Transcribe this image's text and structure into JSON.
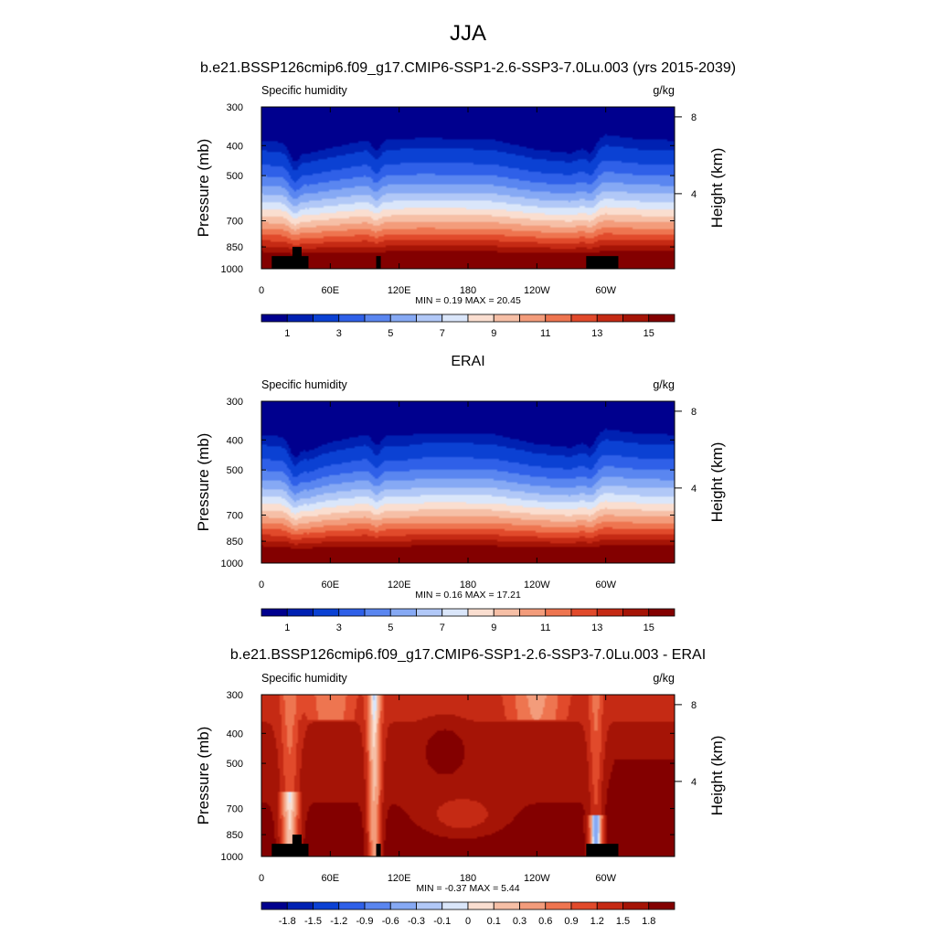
{
  "figure": {
    "season_title": "JJA",
    "case_title": "b.e21.BSSP126cmip6.f09_g17.CMIP6-SSP1-2.6-SSP3-7.0Lu.003 (yrs 2015-2039)"
  },
  "chart_data": [
    {
      "type": "heatmap",
      "title": "",
      "left_string": "Specific humidity",
      "right_string": "g/kg",
      "xlabel": "",
      "ylabel": "Pressure (mb)",
      "y2label": "Height (km)",
      "xticks": [
        "0",
        "60E",
        "120E",
        "180",
        "120W",
        "60W"
      ],
      "xtick_values": [
        0,
        60,
        120,
        180,
        240,
        300
      ],
      "xlim": [
        0,
        360
      ],
      "yticks": [
        "300",
        "400",
        "500",
        "700",
        "850",
        "1000"
      ],
      "ytick_values": [
        300,
        400,
        500,
        700,
        850,
        1000
      ],
      "ylim": [
        1000,
        300
      ],
      "y2ticks": [
        "8",
        "4"
      ],
      "y2tick_values": [
        8,
        4
      ],
      "stats": "MIN =   0.19  MAX =  20.45",
      "min": 0.19,
      "max": 20.45,
      "colorbar_labels": [
        "1",
        "3",
        "5",
        "7",
        "9",
        "11",
        "13",
        "15"
      ],
      "colorbar_colors": [
        "#00008e",
        "#0021b2",
        "#0b41d3",
        "#2f60e8",
        "#5a86f0",
        "#86a9f4",
        "#b1c8f7",
        "#dae6fa",
        "#faded0",
        "#f6bfa6",
        "#f39c7b",
        "#ee7550",
        "#e14a2b",
        "#c52a14",
        "#a51406",
        "#830000"
      ],
      "has_terrain": true
    },
    {
      "type": "heatmap",
      "title": "ERAI",
      "left_string": "Specific humidity",
      "right_string": "g/kg",
      "xlabel": "",
      "ylabel": "Pressure (mb)",
      "y2label": "Height (km)",
      "xticks": [
        "0",
        "60E",
        "120E",
        "180",
        "120W",
        "60W"
      ],
      "xtick_values": [
        0,
        60,
        120,
        180,
        240,
        300
      ],
      "xlim": [
        0,
        360
      ],
      "yticks": [
        "300",
        "400",
        "500",
        "700",
        "850",
        "1000"
      ],
      "ytick_values": [
        300,
        400,
        500,
        700,
        850,
        1000
      ],
      "ylim": [
        1000,
        300
      ],
      "y2ticks": [
        "8",
        "4"
      ],
      "y2tick_values": [
        8,
        4
      ],
      "stats": "MIN =   0.16  MAX =  17.21",
      "min": 0.16,
      "max": 17.21,
      "colorbar_labels": [
        "1",
        "3",
        "5",
        "7",
        "9",
        "11",
        "13",
        "15"
      ],
      "colorbar_colors": [
        "#00008e",
        "#0021b2",
        "#0b41d3",
        "#2f60e8",
        "#5a86f0",
        "#86a9f4",
        "#b1c8f7",
        "#dae6fa",
        "#faded0",
        "#f6bfa6",
        "#f39c7b",
        "#ee7550",
        "#e14a2b",
        "#c52a14",
        "#a51406",
        "#830000"
      ],
      "has_terrain": false
    },
    {
      "type": "heatmap",
      "title": "b.e21.BSSP126cmip6.f09_g17.CMIP6-SSP1-2.6-SSP3-7.0Lu.003 - ERAI",
      "left_string": "Specific humidity",
      "right_string": "g/kg",
      "xlabel": "",
      "ylabel": "Pressure (mb)",
      "y2label": "Height (km)",
      "xticks": [
        "0",
        "60E",
        "120E",
        "180",
        "120W",
        "60W"
      ],
      "xtick_values": [
        0,
        60,
        120,
        180,
        240,
        300
      ],
      "xlim": [
        0,
        360
      ],
      "yticks": [
        "300",
        "400",
        "500",
        "700",
        "850",
        "1000"
      ],
      "ytick_values": [
        300,
        400,
        500,
        700,
        850,
        1000
      ],
      "ylim": [
        1000,
        300
      ],
      "y2ticks": [
        "8",
        "4"
      ],
      "y2tick_values": [
        8,
        4
      ],
      "stats": "MIN =  -0.37  MAX =   5.44",
      "min": -0.37,
      "max": 5.44,
      "colorbar_labels": [
        "-1.8",
        "-1.5",
        "-1.2",
        "-0.9",
        "-0.6",
        "-0.3",
        "-0.1",
        "0",
        "0.1",
        "0.3",
        "0.6",
        "0.9",
        "1.2",
        "1.5",
        "1.8"
      ],
      "colorbar_colors": [
        "#00008e",
        "#0021b2",
        "#0b41d3",
        "#2f60e8",
        "#5a86f0",
        "#86a9f4",
        "#b1c8f7",
        "#dae6fa",
        "#faded0",
        "#f6bfa6",
        "#f39c7b",
        "#ee7550",
        "#e14a2b",
        "#c52a14",
        "#a51406",
        "#830000"
      ],
      "has_terrain": true
    }
  ]
}
